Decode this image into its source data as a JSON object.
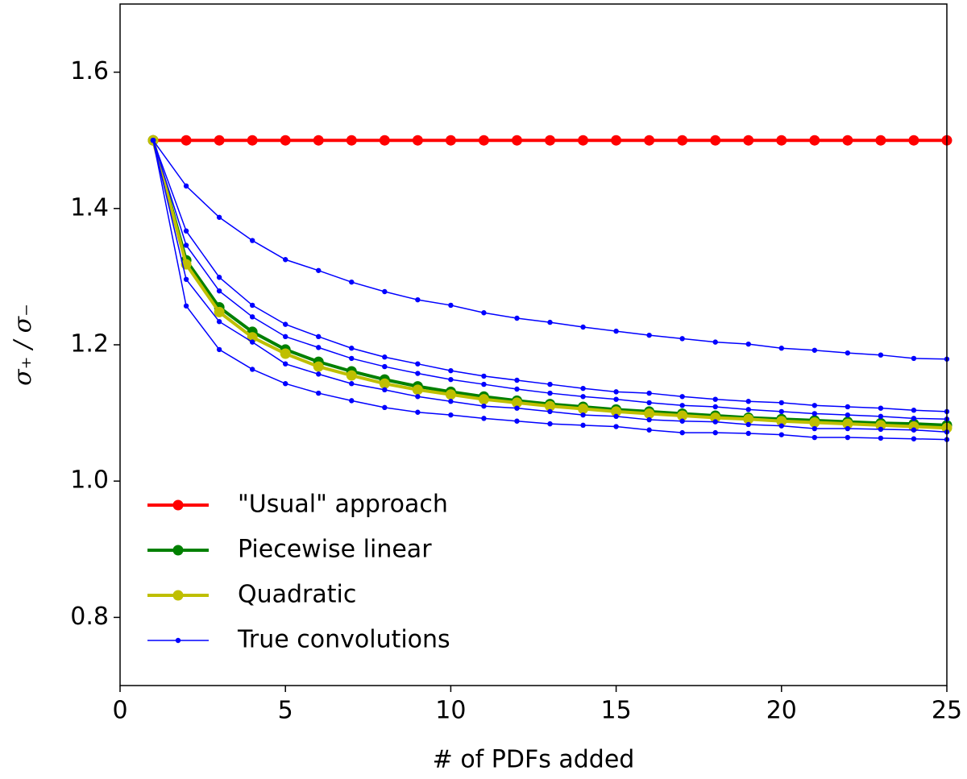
{
  "chart_data": {
    "type": "line",
    "xlabel": "# of PDFs added",
    "ylabel": "σ₊ / σ₋",
    "x": [
      1,
      2,
      3,
      4,
      5,
      6,
      7,
      8,
      9,
      10,
      11,
      12,
      13,
      14,
      15,
      16,
      17,
      18,
      19,
      20,
      21,
      22,
      23,
      24,
      25
    ],
    "xlim": [
      0,
      25
    ],
    "xticks": [
      0,
      5,
      10,
      15,
      20,
      25
    ],
    "ylim": [
      0.7,
      1.7
    ],
    "yticks": [
      0.8,
      {
        "value": 1,
        "label": "1.0"
      },
      1.2,
      1.4,
      1.6
    ],
    "legend": "lower left",
    "series": [
      {
        "name": "\"Usual\" approach",
        "color": "#ff0000",
        "values": [
          1.5,
          1.5,
          1.5,
          1.5,
          1.5,
          1.5,
          1.5,
          1.5,
          1.5,
          1.5,
          1.5,
          1.5,
          1.5,
          1.5,
          1.5,
          1.5,
          1.5,
          1.5,
          1.5,
          1.5,
          1.5,
          1.5,
          1.5,
          1.5,
          1.5
        ]
      },
      {
        "name": "Piecewise linear",
        "color": "#008000",
        "values": [
          1.5,
          1.324,
          1.255,
          1.219,
          1.193,
          1.175,
          1.161,
          1.149,
          1.139,
          1.131,
          1.124,
          1.118,
          1.113,
          1.109,
          1.105,
          1.102,
          1.099,
          1.096,
          1.093,
          1.091,
          1.089,
          1.087,
          1.085,
          1.084,
          1.082
        ]
      },
      {
        "name": "Quadratic",
        "color": "#bfbf00",
        "values": [
          1.5,
          1.318,
          1.248,
          1.211,
          1.187,
          1.168,
          1.155,
          1.143,
          1.134,
          1.127,
          1.12,
          1.115,
          1.11,
          1.106,
          1.102,
          1.099,
          1.096,
          1.093,
          1.091,
          1.088,
          1.086,
          1.084,
          1.082,
          1.08,
          1.078
        ]
      },
      {
        "name": "True convolutions",
        "color": "#0000ff",
        "values": [
          1.5,
          1.433,
          1.387,
          1.353,
          1.325,
          1.309,
          1.292,
          1.278,
          1.266,
          1.258,
          1.247,
          1.239,
          1.233,
          1.226,
          1.22,
          1.214,
          1.209,
          1.204,
          1.201,
          1.195,
          1.192,
          1.188,
          1.185,
          1.18,
          1.179
        ]
      },
      {
        "color": "#0000ff",
        "values": [
          1.5,
          1.367,
          1.299,
          1.258,
          1.23,
          1.212,
          1.195,
          1.182,
          1.172,
          1.162,
          1.154,
          1.148,
          1.142,
          1.136,
          1.131,
          1.129,
          1.124,
          1.12,
          1.117,
          1.115,
          1.111,
          1.109,
          1.107,
          1.104,
          1.102
        ]
      },
      {
        "color": "#0000ff",
        "values": [
          1.5,
          1.346,
          1.279,
          1.241,
          1.212,
          1.196,
          1.18,
          1.168,
          1.158,
          1.149,
          1.142,
          1.135,
          1.129,
          1.124,
          1.12,
          1.115,
          1.111,
          1.109,
          1.105,
          1.102,
          1.099,
          1.097,
          1.095,
          1.092,
          1.091
        ]
      },
      {
        "color": "#0000ff",
        "values": [
          1.5,
          1.296,
          1.234,
          1.204,
          1.172,
          1.157,
          1.143,
          1.134,
          1.124,
          1.117,
          1.11,
          1.107,
          1.102,
          1.097,
          1.095,
          1.09,
          1.088,
          1.087,
          1.083,
          1.081,
          1.077,
          1.077,
          1.076,
          1.075,
          1.072
        ]
      },
      {
        "color": "#0000ff",
        "values": [
          1.5,
          1.257,
          1.193,
          1.164,
          1.143,
          1.129,
          1.118,
          1.108,
          1.101,
          1.097,
          1.092,
          1.088,
          1.084,
          1.082,
          1.08,
          1.075,
          1.071,
          1.071,
          1.07,
          1.068,
          1.064,
          1.064,
          1.063,
          1.062,
          1.061
        ]
      }
    ]
  }
}
